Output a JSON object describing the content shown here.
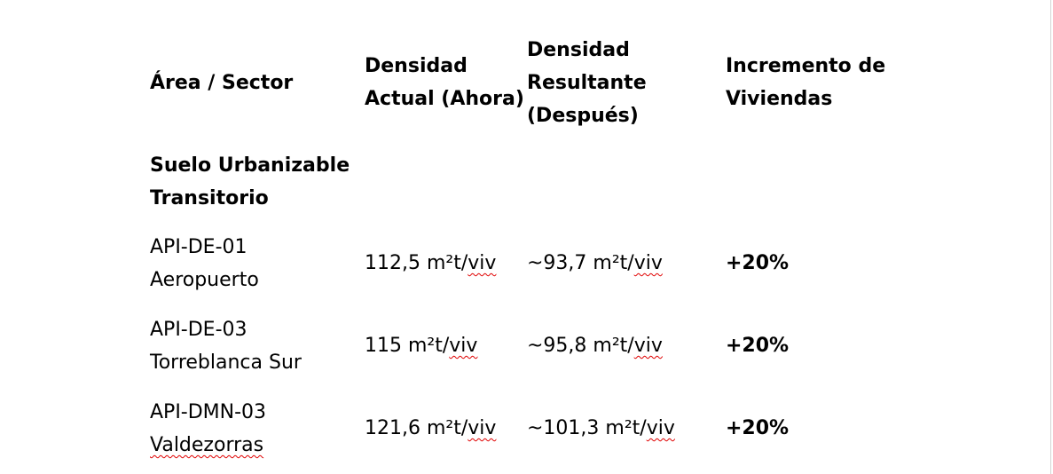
{
  "header": {
    "col1": "Área / Sector",
    "col2_line1": "Densidad",
    "col2_line2": "Actual (Ahora)",
    "col3_line1": "Densidad",
    "col3_line2": "Resultante",
    "col3_line3": "(Después)",
    "col4_line1": "Incremento de",
    "col4_line2": "Viviendas"
  },
  "section": {
    "line1": "Suelo Urbanizable",
    "line2": "Transitorio"
  },
  "rows": [
    {
      "area_line1": "API-DE-01",
      "area_line2": "Aeropuerto",
      "actual_value": "112,5 m²t/",
      "actual_unit": "viv",
      "resultante_value": "~93,7 m²t/",
      "resultante_unit": "viv",
      "incremento": "+20%"
    },
    {
      "area_line1": "API-DE-03",
      "area_line2": "Torreblanca Sur",
      "actual_value": "115 m²t/",
      "actual_unit": "viv",
      "resultante_value": "~95,8 m²t/",
      "resultante_unit": "viv",
      "incremento": "+20%"
    },
    {
      "area_line1": "API-DMN-03",
      "area_line2": "Valdezorras",
      "actual_value": "121,6 m²t/",
      "actual_unit": "viv",
      "resultante_value": "~101,3 m²t/",
      "resultante_unit": "viv",
      "incremento": "+20%"
    }
  ]
}
